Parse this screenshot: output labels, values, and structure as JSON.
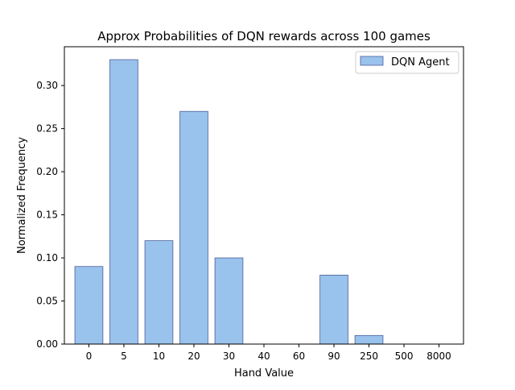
{
  "chart_data": {
    "type": "bar",
    "title": "Approx Probabilities of DQN rewards across 100 games",
    "xlabel": "Hand Value",
    "ylabel": "Normalized Frequency",
    "categories": [
      "0",
      "5",
      "10",
      "20",
      "30",
      "40",
      "60",
      "90",
      "250",
      "500",
      "8000"
    ],
    "series": [
      {
        "name": "DQN Agent",
        "values": [
          0.09,
          0.33,
          0.12,
          0.27,
          0.1,
          0,
          0,
          0.08,
          0.01,
          0,
          0
        ]
      }
    ],
    "ylim": [
      0,
      0.345
    ],
    "yticks": [
      0.0,
      0.05,
      0.1,
      0.15,
      0.2,
      0.25,
      0.3
    ],
    "ytick_labels": [
      "0.00",
      "0.05",
      "0.10",
      "0.15",
      "0.20",
      "0.25",
      "0.30"
    ],
    "legend_position": "top-right",
    "grid": false,
    "colors": {
      "bar_fill": "#99c2ec",
      "bar_edge": "#4a5e9a"
    }
  }
}
